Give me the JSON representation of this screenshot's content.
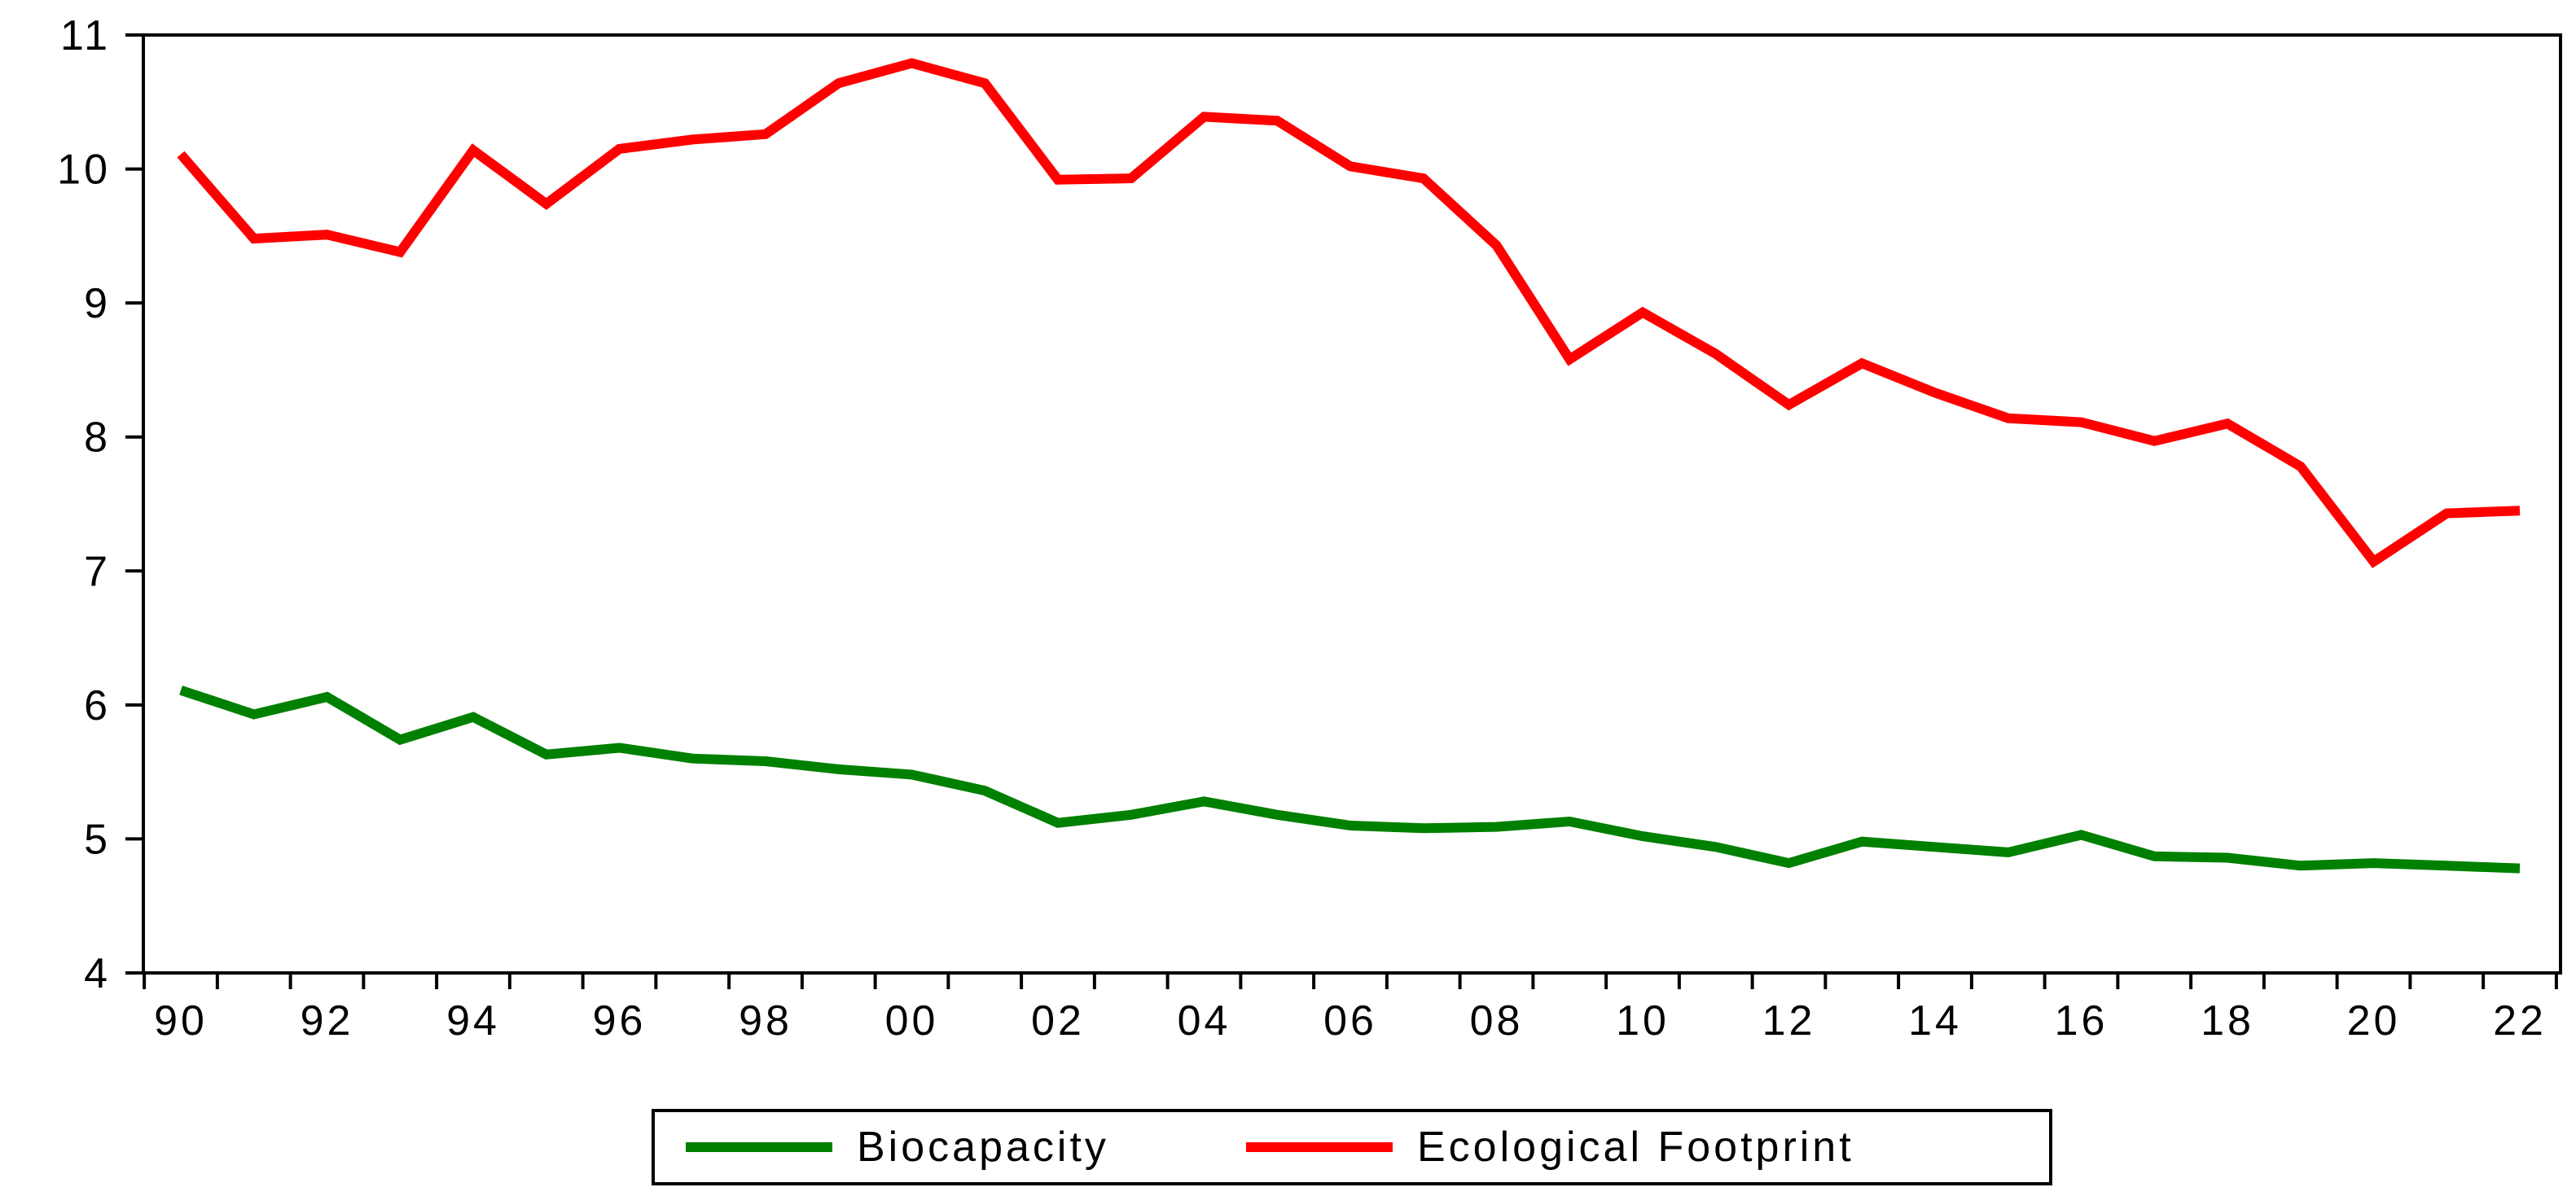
{
  "chart_data": {
    "type": "line",
    "title": "",
    "xlabel": "",
    "ylabel": "",
    "ylim": [
      4,
      11
    ],
    "yticks": [
      4,
      5,
      6,
      7,
      8,
      9,
      10,
      11
    ],
    "x": [
      1990,
      1991,
      1992,
      1993,
      1994,
      1995,
      1996,
      1997,
      1998,
      1999,
      2000,
      2001,
      2002,
      2003,
      2004,
      2005,
      2006,
      2007,
      2008,
      2009,
      2010,
      2011,
      2012,
      2013,
      2014,
      2015,
      2016,
      2017,
      2018,
      2019,
      2020,
      2021,
      2022
    ],
    "xtick_labels": [
      "90",
      "92",
      "94",
      "96",
      "98",
      "00",
      "02",
      "04",
      "06",
      "08",
      "10",
      "12",
      "14",
      "16",
      "18",
      "20",
      "22"
    ],
    "grid": false,
    "legend_position": "bottom-center",
    "series": [
      {
        "name": "Biocapacity",
        "color": "#008000",
        "values": [
          6.11,
          5.93,
          6.06,
          5.74,
          5.91,
          5.63,
          5.68,
          5.6,
          5.58,
          5.52,
          5.48,
          5.36,
          5.12,
          5.18,
          5.28,
          5.18,
          5.1,
          5.08,
          5.09,
          5.13,
          5.02,
          4.94,
          4.82,
          4.98,
          4.94,
          4.9,
          5.03,
          4.87,
          4.86,
          4.8,
          4.82,
          4.8,
          4.78
        ]
      },
      {
        "name": "Ecological Footprint",
        "color": "#ff0000",
        "values": [
          10.11,
          9.48,
          9.51,
          9.38,
          10.14,
          9.74,
          10.15,
          10.22,
          10.26,
          10.64,
          10.79,
          10.64,
          9.92,
          9.93,
          10.39,
          10.36,
          10.02,
          9.93,
          9.43,
          8.58,
          8.93,
          8.62,
          8.24,
          8.55,
          8.33,
          8.14,
          8.11,
          7.97,
          8.1,
          7.78,
          7.07,
          7.43,
          7.45
        ]
      }
    ]
  }
}
